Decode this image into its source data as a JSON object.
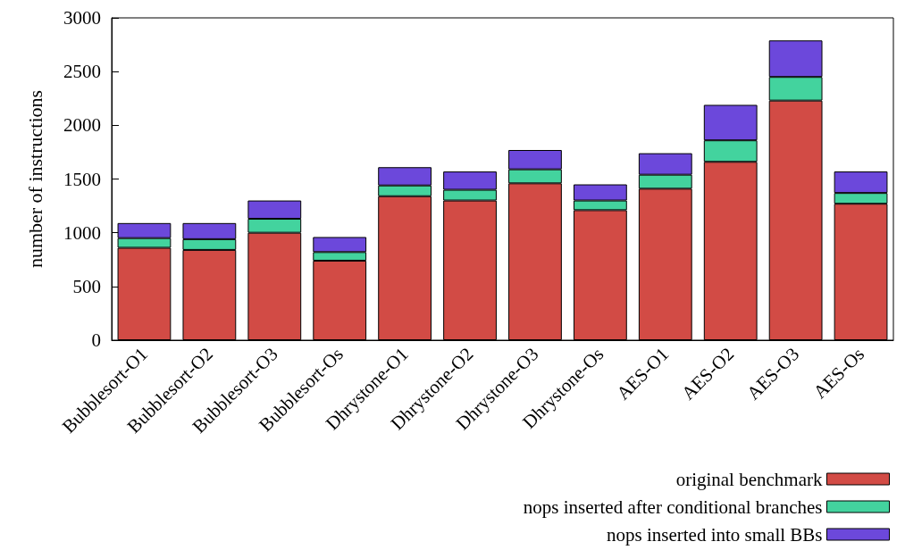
{
  "chart_data": {
    "type": "bar",
    "stacked": true,
    "ylabel": "number of instructions",
    "categories": [
      "Bubblesort-O1",
      "Bubblesort-O2",
      "Bubblesort-O3",
      "Bubblesort-Os",
      "Dhrystone-O1",
      "Dhrystone-O2",
      "Dhrystone-O3",
      "Dhrystone-Os",
      "AES-O1",
      "AES-O2",
      "AES-O3",
      "AES-Os"
    ],
    "series": [
      {
        "name": "original benchmark",
        "color": "#d24b45",
        "values": [
          860,
          840,
          1000,
          740,
          1340,
          1300,
          1460,
          1210,
          1410,
          1660,
          2230,
          1270
        ]
      },
      {
        "name": "nops inserted after conditional branches",
        "color": "#43d39e",
        "values": [
          90,
          100,
          130,
          80,
          100,
          100,
          130,
          90,
          130,
          200,
          220,
          100
        ]
      },
      {
        "name": "nops inserted into small BBs",
        "color": "#6c48db",
        "values": [
          140,
          150,
          170,
          140,
          170,
          170,
          180,
          150,
          200,
          330,
          340,
          200
        ]
      }
    ],
    "ylim": [
      0,
      3000
    ],
    "yticks": [
      0,
      500,
      1000,
      1500,
      2000,
      2500,
      3000
    ],
    "grid": false,
    "legend": "bottom right"
  }
}
